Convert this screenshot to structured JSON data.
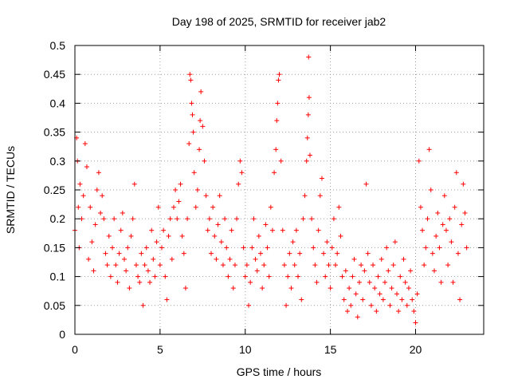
{
  "chart_data": {
    "type": "scatter",
    "title": "Day 198 of 2025, SRMTID for receiver jab2",
    "xlabel": "GPS time / hours",
    "ylabel": "SRMTID / TECUs",
    "xlim": [
      0,
      24
    ],
    "ylim": [
      0,
      0.5
    ],
    "xticks": [
      0,
      5,
      10,
      15,
      20
    ],
    "yticks": [
      0,
      0.05,
      0.1,
      0.15,
      0.2,
      0.25,
      0.3,
      0.35,
      0.4,
      0.45,
      0.5
    ],
    "xtick_labels": [
      "0",
      "5",
      "10",
      "15",
      "20"
    ],
    "ytick_labels": [
      "0",
      "0.05",
      "0.1",
      "0.15",
      "0.2",
      "0.25",
      "0.3",
      "0.35",
      "0.4",
      "0.45",
      "0.5"
    ],
    "grid": true,
    "marker": "+",
    "color": "#ff0000",
    "series": [
      {
        "name": "SRMTID",
        "points": [
          [
            0.0,
            0.18
          ],
          [
            0.1,
            0.34
          ],
          [
            0.15,
            0.3
          ],
          [
            0.2,
            0.22
          ],
          [
            0.25,
            0.15
          ],
          [
            0.3,
            0.26
          ],
          [
            0.4,
            0.2
          ],
          [
            0.5,
            0.24
          ],
          [
            0.6,
            0.33
          ],
          [
            0.7,
            0.29
          ],
          [
            0.8,
            0.13
          ],
          [
            0.9,
            0.22
          ],
          [
            1.0,
            0.16
          ],
          [
            1.1,
            0.11
          ],
          [
            1.2,
            0.19
          ],
          [
            1.3,
            0.25
          ],
          [
            1.4,
            0.28
          ],
          [
            1.5,
            0.21
          ],
          [
            1.6,
            0.24
          ],
          [
            1.7,
            0.2
          ],
          [
            1.8,
            0.14
          ],
          [
            1.9,
            0.12
          ],
          [
            2.0,
            0.17
          ],
          [
            2.1,
            0.1
          ],
          [
            2.2,
            0.15
          ],
          [
            2.3,
            0.2
          ],
          [
            2.4,
            0.12
          ],
          [
            2.5,
            0.09
          ],
          [
            2.6,
            0.14
          ],
          [
            2.7,
            0.18
          ],
          [
            2.8,
            0.21
          ],
          [
            2.9,
            0.13
          ],
          [
            3.0,
            0.11
          ],
          [
            3.1,
            0.15
          ],
          [
            3.2,
            0.08
          ],
          [
            3.3,
            0.17
          ],
          [
            3.4,
            0.2
          ],
          [
            3.5,
            0.26
          ],
          [
            3.6,
            0.12
          ],
          [
            3.7,
            0.1
          ],
          [
            3.8,
            0.09
          ],
          [
            3.9,
            0.14
          ],
          [
            4.0,
            0.05
          ],
          [
            4.1,
            0.12
          ],
          [
            4.2,
            0.15
          ],
          [
            4.3,
            0.11
          ],
          [
            4.4,
            0.09
          ],
          [
            4.5,
            0.18
          ],
          [
            4.6,
            0.13
          ],
          [
            4.7,
            0.1
          ],
          [
            4.8,
            0.16
          ],
          [
            4.9,
            0.22
          ],
          [
            5.0,
            0.12
          ],
          [
            5.1,
            0.15
          ],
          [
            5.2,
            0.18
          ],
          [
            5.3,
            0.1
          ],
          [
            5.4,
            0.06
          ],
          [
            5.5,
            0.17
          ],
          [
            5.6,
            0.2
          ],
          [
            5.7,
            0.13
          ],
          [
            5.8,
            0.22
          ],
          [
            5.9,
            0.25
          ],
          [
            6.0,
            0.2
          ],
          [
            6.1,
            0.23
          ],
          [
            6.2,
            0.26
          ],
          [
            6.3,
            0.17
          ],
          [
            6.4,
            0.14
          ],
          [
            6.5,
            0.08
          ],
          [
            6.6,
            0.2
          ],
          [
            6.7,
            0.33
          ],
          [
            6.75,
            0.45
          ],
          [
            6.8,
            0.44
          ],
          [
            6.85,
            0.4
          ],
          [
            6.9,
            0.38
          ],
          [
            6.95,
            0.35
          ],
          [
            7.0,
            0.28
          ],
          [
            7.1,
            0.22
          ],
          [
            7.2,
            0.25
          ],
          [
            7.3,
            0.32
          ],
          [
            7.35,
            0.37
          ],
          [
            7.4,
            0.42
          ],
          [
            7.5,
            0.36
          ],
          [
            7.6,
            0.3
          ],
          [
            7.7,
            0.24
          ],
          [
            7.8,
            0.18
          ],
          [
            7.9,
            0.2
          ],
          [
            8.0,
            0.14
          ],
          [
            8.1,
            0.22
          ],
          [
            8.2,
            0.17
          ],
          [
            8.3,
            0.13
          ],
          [
            8.4,
            0.19
          ],
          [
            8.5,
            0.24
          ],
          [
            8.6,
            0.16
          ],
          [
            8.7,
            0.12
          ],
          [
            8.8,
            0.2
          ],
          [
            8.9,
            0.15
          ],
          [
            9.0,
            0.1
          ],
          [
            9.1,
            0.13
          ],
          [
            9.2,
            0.18
          ],
          [
            9.3,
            0.08
          ],
          [
            9.4,
            0.12
          ],
          [
            9.5,
            0.2
          ],
          [
            9.6,
            0.26
          ],
          [
            9.7,
            0.3
          ],
          [
            9.8,
            0.28
          ],
          [
            9.9,
            0.15
          ],
          [
            10.0,
            0.1
          ],
          [
            10.1,
            0.12
          ],
          [
            10.2,
            0.05
          ],
          [
            10.3,
            0.09
          ],
          [
            10.4,
            0.15
          ],
          [
            10.5,
            0.2
          ],
          [
            10.6,
            0.13
          ],
          [
            10.7,
            0.11
          ],
          [
            10.8,
            0.17
          ],
          [
            10.9,
            0.14
          ],
          [
            11.0,
            0.08
          ],
          [
            11.1,
            0.12
          ],
          [
            11.2,
            0.19
          ],
          [
            11.3,
            0.15
          ],
          [
            11.4,
            0.1
          ],
          [
            11.5,
            0.22
          ],
          [
            11.6,
            0.18
          ],
          [
            11.7,
            0.28
          ],
          [
            11.8,
            0.32
          ],
          [
            11.85,
            0.37
          ],
          [
            11.9,
            0.4
          ],
          [
            11.95,
            0.44
          ],
          [
            12.0,
            0.45
          ],
          [
            12.1,
            0.3
          ],
          [
            12.2,
            0.18
          ],
          [
            12.3,
            0.12
          ],
          [
            12.4,
            0.05
          ],
          [
            12.5,
            0.1
          ],
          [
            12.6,
            0.14
          ],
          [
            12.7,
            0.08
          ],
          [
            12.8,
            0.16
          ],
          [
            12.9,
            0.12
          ],
          [
            13.0,
            0.18
          ],
          [
            13.1,
            0.1
          ],
          [
            13.2,
            0.14
          ],
          [
            13.3,
            0.06
          ],
          [
            13.4,
            0.2
          ],
          [
            13.5,
            0.24
          ],
          [
            13.6,
            0.3
          ],
          [
            13.65,
            0.34
          ],
          [
            13.7,
            0.38
          ],
          [
            13.72,
            0.48
          ],
          [
            13.75,
            0.41
          ],
          [
            13.8,
            0.31
          ],
          [
            13.9,
            0.2
          ],
          [
            14.0,
            0.15
          ],
          [
            14.1,
            0.12
          ],
          [
            14.2,
            0.09
          ],
          [
            14.3,
            0.18
          ],
          [
            14.4,
            0.24
          ],
          [
            14.5,
            0.27
          ],
          [
            14.6,
            0.14
          ],
          [
            14.7,
            0.1
          ],
          [
            14.8,
            0.16
          ],
          [
            14.9,
            0.12
          ],
          [
            15.0,
            0.08
          ],
          [
            15.1,
            0.15
          ],
          [
            15.2,
            0.2
          ],
          [
            15.3,
            0.12
          ],
          [
            15.4,
            0.14
          ],
          [
            15.5,
            0.22
          ],
          [
            15.6,
            0.17
          ],
          [
            15.7,
            0.1
          ],
          [
            15.8,
            0.06
          ],
          [
            15.9,
            0.11
          ],
          [
            16.0,
            0.04
          ],
          [
            16.1,
            0.08
          ],
          [
            16.2,
            0.05
          ],
          [
            16.3,
            0.1
          ],
          [
            16.4,
            0.13
          ],
          [
            16.5,
            0.07
          ],
          [
            16.6,
            0.03
          ],
          [
            16.7,
            0.09
          ],
          [
            16.8,
            0.12
          ],
          [
            16.9,
            0.06
          ],
          [
            17.0,
            0.11
          ],
          [
            17.1,
            0.26
          ],
          [
            17.2,
            0.14
          ],
          [
            17.3,
            0.09
          ],
          [
            17.4,
            0.05
          ],
          [
            17.5,
            0.12
          ],
          [
            17.6,
            0.08
          ],
          [
            17.7,
            0.04
          ],
          [
            17.8,
            0.1
          ],
          [
            17.9,
            0.07
          ],
          [
            18.0,
            0.13
          ],
          [
            18.1,
            0.06
          ],
          [
            18.2,
            0.09
          ],
          [
            18.3,
            0.15
          ],
          [
            18.4,
            0.11
          ],
          [
            18.5,
            0.05
          ],
          [
            18.6,
            0.08
          ],
          [
            18.7,
            0.12
          ],
          [
            18.8,
            0.16
          ],
          [
            18.9,
            0.07
          ],
          [
            19.0,
            0.04
          ],
          [
            19.1,
            0.1
          ],
          [
            19.2,
            0.06
          ],
          [
            19.3,
            0.13
          ],
          [
            19.4,
            0.09
          ],
          [
            19.5,
            0.05
          ],
          [
            19.6,
            0.08
          ],
          [
            19.7,
            0.11
          ],
          [
            19.8,
            0.06
          ],
          [
            19.9,
            0.04
          ],
          [
            20.0,
            0.02
          ],
          [
            20.1,
            0.07
          ],
          [
            20.2,
            0.3
          ],
          [
            20.3,
            0.22
          ],
          [
            20.4,
            0.18
          ],
          [
            20.5,
            0.12
          ],
          [
            20.6,
            0.15
          ],
          [
            20.7,
            0.2
          ],
          [
            20.8,
            0.32
          ],
          [
            20.9,
            0.25
          ],
          [
            21.0,
            0.14
          ],
          [
            21.1,
            0.11
          ],
          [
            21.2,
            0.17
          ],
          [
            21.3,
            0.21
          ],
          [
            21.4,
            0.15
          ],
          [
            21.5,
            0.09
          ],
          [
            21.6,
            0.19
          ],
          [
            21.7,
            0.24
          ],
          [
            21.8,
            0.18
          ],
          [
            21.9,
            0.12
          ],
          [
            22.0,
            0.2
          ],
          [
            22.1,
            0.16
          ],
          [
            22.2,
            0.09
          ],
          [
            22.3,
            0.22
          ],
          [
            22.4,
            0.28
          ],
          [
            22.5,
            0.14
          ],
          [
            22.6,
            0.06
          ],
          [
            22.7,
            0.19
          ],
          [
            22.8,
            0.26
          ],
          [
            22.9,
            0.21
          ],
          [
            23.0,
            0.15
          ]
        ]
      }
    ]
  }
}
